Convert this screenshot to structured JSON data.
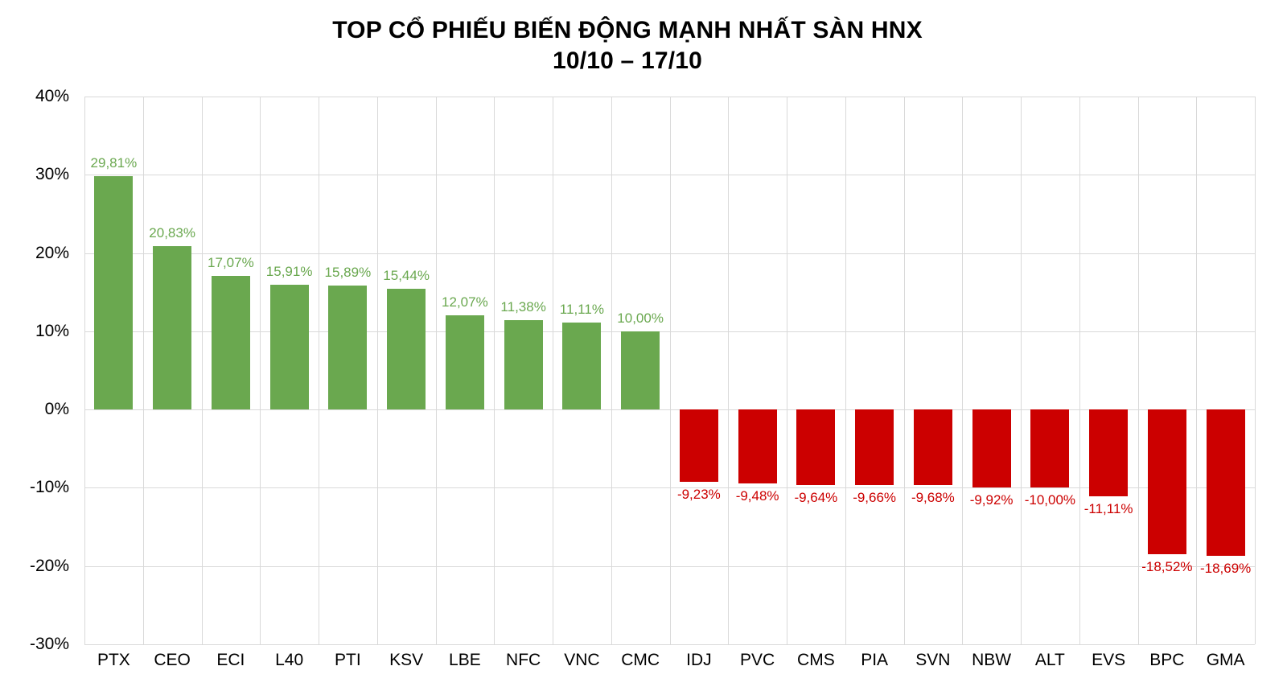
{
  "chart_data": {
    "type": "bar",
    "title": "TOP CỔ PHIẾU BIẾN ĐỘNG MẠNH NHẤT SÀN HNX",
    "subtitle": "10/10 – 17/10",
    "categories": [
      "PTX",
      "CEO",
      "ECI",
      "L40",
      "PTI",
      "KSV",
      "LBE",
      "NFC",
      "VNC",
      "CMC",
      "IDJ",
      "PVC",
      "CMS",
      "PIA",
      "SVN",
      "NBW",
      "ALT",
      "EVS",
      "BPC",
      "GMA"
    ],
    "values": [
      29.81,
      20.83,
      17.07,
      15.91,
      15.89,
      15.44,
      12.07,
      11.38,
      11.11,
      10.0,
      -9.23,
      -9.48,
      -9.64,
      -9.66,
      -9.68,
      -9.92,
      -10.0,
      -11.11,
      -18.52,
      -18.69
    ],
    "value_labels": [
      "29,81%",
      "20,83%",
      "17,07%",
      "15,91%",
      "15,89%",
      "15,44%",
      "12,07%",
      "11,38%",
      "11,11%",
      "10,00%",
      "-9,23%",
      "-9,48%",
      "-9,64%",
      "-9,66%",
      "-9,68%",
      "-9,92%",
      "-10,00%",
      "-11,11%",
      "-18,52%",
      "-18,69%"
    ],
    "ylim": [
      -30,
      40
    ],
    "yticks": [
      {
        "value": 40,
        "label": "40%"
      },
      {
        "value": 30,
        "label": "30%"
      },
      {
        "value": 20,
        "label": "20%"
      },
      {
        "value": 10,
        "label": "10%"
      },
      {
        "value": 0,
        "label": "0%"
      },
      {
        "value": -10,
        "label": "-10%"
      },
      {
        "value": -20,
        "label": "-20%"
      },
      {
        "value": -30,
        "label": "-30%"
      }
    ],
    "grid": true,
    "legend": "none",
    "positive_color": "#6aa84f",
    "negative_color": "#cc0000",
    "gridline_color": "#d9d9d9",
    "axis_text_color": "#000000",
    "background_color": "#ffffff"
  }
}
